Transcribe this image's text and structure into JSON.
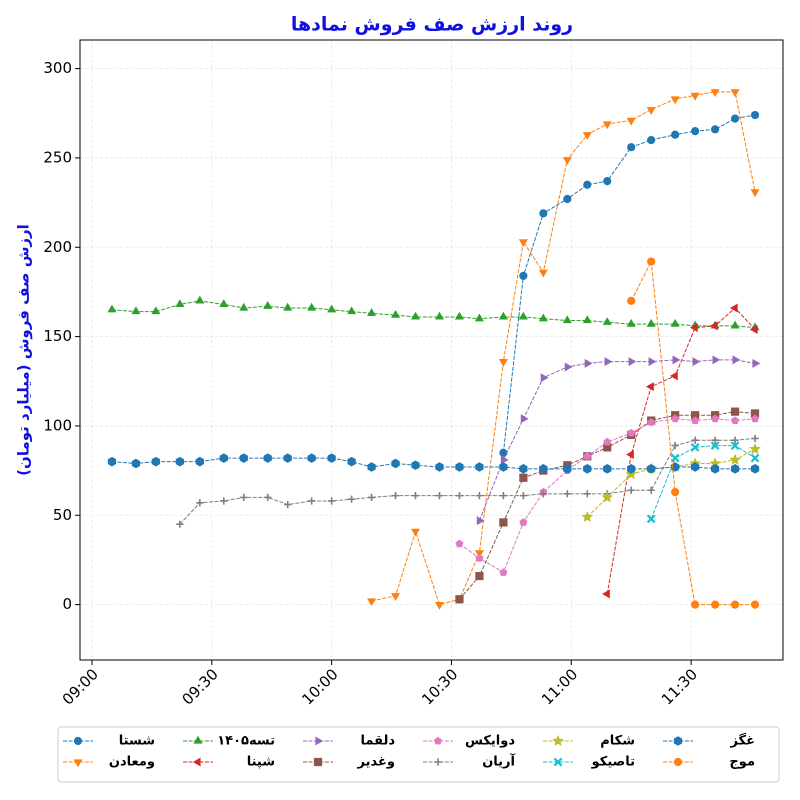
{
  "chart_data": {
    "type": "line",
    "title": "روند ارزش صف فروش نمادها",
    "y_label": "ارزش صف فروش (میلیارد تومان)",
    "x": [
      "09:05",
      "09:11",
      "09:16",
      "09:22",
      "09:27",
      "09:33",
      "09:38",
      "09:44",
      "09:49",
      "09:55",
      "10:00",
      "10:05",
      "10:10",
      "10:16",
      "10:21",
      "10:27",
      "10:32",
      "10:37",
      "10:43",
      "10:48",
      "10:53",
      "10:59",
      "11:04",
      "11:09",
      "11:15",
      "11:20",
      "11:26",
      "11:31",
      "11:36",
      "11:41",
      "11:46"
    ],
    "xlim": [
      "08:57",
      "11:53"
    ],
    "xticks": [
      "09:00",
      "09:30",
      "10:00",
      "10:30",
      "11:00",
      "11:30"
    ],
    "ylim": [
      -31,
      316
    ],
    "yticks": [
      0,
      50,
      100,
      150,
      200,
      250,
      300
    ],
    "grid": true,
    "legend": "bottom",
    "series": [
      {
        "name": "شستا",
        "color": "#1f77b4",
        "marker": "circle",
        "values": [
          null,
          null,
          null,
          null,
          null,
          null,
          null,
          null,
          null,
          null,
          null,
          null,
          null,
          null,
          null,
          null,
          null,
          null,
          85,
          184,
          219,
          227,
          235,
          237,
          256,
          260,
          263,
          265,
          266,
          272,
          274
        ]
      },
      {
        "name": "ومعادن",
        "color": "#ff7f0e",
        "marker": "triangle-down",
        "values": [
          null,
          null,
          null,
          null,
          null,
          null,
          null,
          null,
          null,
          null,
          null,
          null,
          2,
          5,
          41,
          0,
          3,
          29,
          136,
          203,
          186,
          249,
          263,
          269,
          271,
          277,
          283,
          285,
          287,
          287,
          231
        ]
      },
      {
        "name": "تسه۱۴۰۵",
        "color": "#2ca02c",
        "marker": "triangle-up",
        "values": [
          165,
          164,
          164,
          168,
          170,
          168,
          166,
          167,
          166,
          166,
          165,
          164,
          163,
          162,
          161,
          161,
          161,
          160,
          161,
          161,
          160,
          159,
          159,
          158,
          157,
          157,
          157,
          156,
          156,
          156,
          155
        ]
      },
      {
        "name": "شپنا",
        "color": "#d62728",
        "marker": "triangle-left",
        "values": [
          null,
          null,
          null,
          null,
          null,
          null,
          null,
          null,
          null,
          null,
          null,
          null,
          null,
          null,
          null,
          null,
          null,
          null,
          null,
          null,
          null,
          null,
          null,
          6,
          84,
          122,
          128,
          155,
          156,
          166,
          154
        ]
      },
      {
        "name": "دلقما",
        "color": "#9467bd",
        "marker": "triangle-right",
        "values": [
          null,
          null,
          null,
          null,
          null,
          null,
          null,
          null,
          null,
          null,
          null,
          null,
          null,
          null,
          null,
          null,
          null,
          47,
          81,
          104,
          127,
          133,
          135,
          136,
          136,
          136,
          137,
          136,
          137,
          137,
          135
        ]
      },
      {
        "name": "وغدیر",
        "color": "#8c564b",
        "marker": "square",
        "values": [
          null,
          null,
          null,
          null,
          null,
          null,
          null,
          null,
          null,
          null,
          null,
          null,
          null,
          null,
          null,
          null,
          3,
          16,
          46,
          71,
          75,
          78,
          83,
          88,
          95,
          103,
          106,
          106,
          106,
          108,
          107
        ]
      },
      {
        "name": "دوایکس",
        "color": "#e377c2",
        "marker": "pentagon",
        "values": [
          null,
          null,
          null,
          null,
          null,
          null,
          null,
          null,
          null,
          null,
          null,
          null,
          null,
          null,
          null,
          null,
          34,
          26,
          18,
          46,
          63,
          75,
          83,
          91,
          96,
          102,
          104,
          103,
          104,
          103,
          104
        ]
      },
      {
        "name": "آریان",
        "color": "#7f7f7f",
        "marker": "plus",
        "values": [
          null,
          null,
          null,
          45,
          57,
          58,
          60,
          60,
          56,
          58,
          58,
          59,
          60,
          61,
          61,
          61,
          61,
          61,
          61,
          61,
          62,
          62,
          62,
          62,
          64,
          64,
          89,
          92,
          92,
          92,
          93
        ]
      },
      {
        "name": "شکام",
        "color": "#bcbd22",
        "marker": "star",
        "values": [
          null,
          null,
          null,
          null,
          null,
          null,
          null,
          null,
          null,
          null,
          null,
          null,
          null,
          null,
          null,
          null,
          null,
          null,
          null,
          null,
          null,
          null,
          49,
          60,
          73,
          76,
          77,
          79,
          79,
          81,
          87
        ]
      },
      {
        "name": "تاصیکو",
        "color": "#17becf",
        "marker": "cross",
        "values": [
          null,
          null,
          null,
          null,
          null,
          null,
          null,
          null,
          null,
          null,
          null,
          null,
          null,
          null,
          null,
          null,
          null,
          null,
          null,
          null,
          null,
          null,
          null,
          null,
          null,
          48,
          82,
          88,
          89,
          89,
          82
        ]
      },
      {
        "name": "غگز",
        "color": "#1f77b4",
        "marker": "hexagon",
        "values": [
          80,
          79,
          80,
          80,
          80,
          82,
          82,
          82,
          82,
          82,
          82,
          80,
          77,
          79,
          78,
          77,
          77,
          77,
          77,
          76,
          76,
          76,
          76,
          76,
          76,
          76,
          77,
          77,
          76,
          76,
          76
        ]
      },
      {
        "name": "موج",
        "color": "#ff7f0e",
        "marker": "circle",
        "values": [
          null,
          null,
          null,
          null,
          null,
          null,
          null,
          null,
          null,
          null,
          null,
          null,
          null,
          null,
          null,
          null,
          null,
          null,
          null,
          null,
          null,
          null,
          null,
          null,
          170,
          192,
          63,
          0,
          0,
          0,
          0
        ]
      }
    ]
  }
}
